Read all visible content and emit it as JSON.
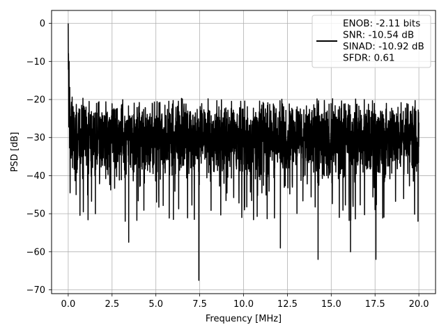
{
  "chart_data": {
    "type": "line",
    "title": "",
    "xlabel": "Frequency [MHz]",
    "ylabel": "PSD [dB]",
    "xlim": [
      -0.95,
      20.95
    ],
    "ylim": [
      -71,
      3.4
    ],
    "grid": true,
    "legend_position": "top-right",
    "x_ticks": [
      0.0,
      2.5,
      5.0,
      7.5,
      10.0,
      12.5,
      15.0,
      17.5,
      20.0
    ],
    "x_tick_labels": [
      "0.0",
      "2.5",
      "5.0",
      "7.5",
      "10.0",
      "12.5",
      "15.0",
      "17.5",
      "20.0"
    ],
    "y_ticks": [
      0,
      -10,
      -20,
      -30,
      -40,
      -50,
      -60,
      -70
    ],
    "y_tick_labels": [
      "0",
      "−10",
      "−20",
      "−30",
      "−40",
      "−50",
      "−60",
      "−70"
    ],
    "legend_entries": [
      "ENOB: -2.11 bits",
      "SNR: -10.54 dB",
      "SINAD: -10.92 dB",
      "SFDR: 0.61"
    ],
    "series": [
      {
        "color": "#000000",
        "x_range": [
          0,
          20
        ],
        "noise_floor_db": -30,
        "peak_db": 0,
        "notable_points": [
          {
            "x": 0.0,
            "y": 0.0
          },
          {
            "x": 0.05,
            "y": -10
          },
          {
            "x": 0.45,
            "y": -45
          },
          {
            "x": 1.55,
            "y": -50
          },
          {
            "x": 3.25,
            "y": -52
          },
          {
            "x": 3.45,
            "y": -57.5
          },
          {
            "x": 6.0,
            "y": -51.5
          },
          {
            "x": 7.45,
            "y": -67.5
          },
          {
            "x": 10.05,
            "y": -49
          },
          {
            "x": 12.1,
            "y": -59
          },
          {
            "x": 14.25,
            "y": -62
          },
          {
            "x": 16.1,
            "y": -60
          },
          {
            "x": 17.55,
            "y": -62
          },
          {
            "x": 19.95,
            "y": -52
          }
        ]
      }
    ]
  }
}
